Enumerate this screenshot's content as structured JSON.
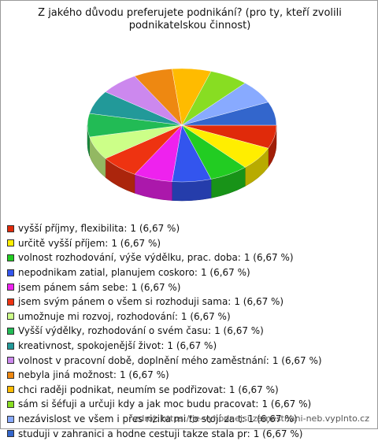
{
  "chart_data": {
    "type": "pie",
    "title": "Z jakého důvodu preferujete podnikání? (pro ty, kteří zvolili podnikatelskou činnost)",
    "categories": [
      "vyšší příjmy, flexibilita:",
      "určitě vyšší příjem:",
      "volnost rozhodování, výše výdělku, prac. doba:",
      "nepodnikam zatial, planujem coskoro:",
      "jsem pánem sám sebe:",
      "jsem svým pánem o všem si rozhoduji sama:",
      "umožnuje mi rozvoj, rozhodování:",
      "Vyšší výdělky, rozhodování o svém času:",
      "kreativnost, spokojenější život:",
      "volnost v pracovní době, doplnění mého zaměstnání:",
      "nebyla jiná možnost:",
      "chci raději podnikat, neumím se podřizovat:",
      "sám si šéfuji a určuji kdy a jak moc budu pracovat:",
      "nezávislost ve všem i přes rizika mi to stojí za t:",
      "studuji v zahranici a hodne cestuji takze stala pr:"
    ],
    "values": [
      1,
      1,
      1,
      1,
      1,
      1,
      1,
      1,
      1,
      1,
      1,
      1,
      1,
      1,
      1
    ],
    "value_labels": [
      "1 (6,67 %)",
      "1 (6,67 %)",
      "1 (6,67 %)",
      "1 (6,67 %)",
      "1 (6,67 %)",
      "1 (6,67 %)",
      "1 (6,67 %)",
      "1 (6,67 %)",
      "1 (6,67 %)",
      "1 (6,67 %)",
      "1 (6,67 %)",
      "1 (6,67 %)",
      "1 (6,67 %)",
      "1 (6,67 %)",
      "1 (6,67 %)"
    ],
    "colors": [
      "#e02a0a",
      "#ffee00",
      "#22cc22",
      "#3355ee",
      "#ee22ee",
      "#ee3311",
      "#ccff88",
      "#22bb55",
      "#229999",
      "#cc88ee",
      "#ee8811",
      "#ffbb00",
      "#88dd22",
      "#88aaff",
      "#3366cc"
    ],
    "source": "zdroj: https://je-vyhodnejsi-zamestnani-neb.vyplnto.cz"
  }
}
